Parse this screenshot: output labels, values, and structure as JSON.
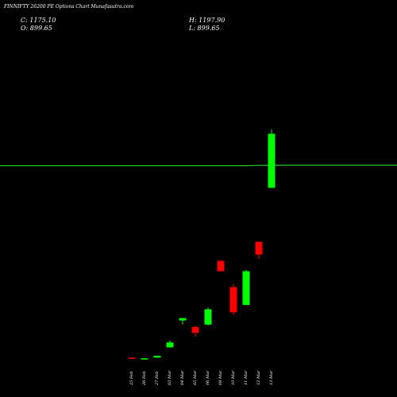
{
  "header": {
    "title": "FINNIFTY 26200 PE Options Chart Munafasutra.com",
    "close": "C: 1175.10",
    "high": "H: 1197.90",
    "open": "O: 899.65",
    "low": "L: 899.65"
  },
  "colors": {
    "background": "#000000",
    "up": "#00ff00",
    "down": "#ff0000",
    "ma_line": "#22cc22",
    "text": "#ffffff"
  },
  "chart_data": {
    "type": "candlestick",
    "title": "FINNIFTY 26200 PE Options Chart Munafasutra.com",
    "xlabel": "",
    "ylabel": "",
    "grid": false,
    "ylim": [
      0,
      1250
    ],
    "categories": [
      "25 Feb",
      "26 Feb",
      "27 Feb",
      "03 Mar",
      "04 Mar",
      "05 Mar",
      "06 Mar",
      "09 Mar",
      "10 Mar",
      "11 Mar",
      "12 Mar",
      "13 Mar"
    ],
    "candles": [
      {
        "date": "25 Feb",
        "open": 35,
        "high": 36,
        "low": 31,
        "close": 32,
        "direction": "down"
      },
      {
        "date": "26 Feb",
        "open": 29,
        "high": 33,
        "low": 28,
        "close": 31,
        "direction": "up"
      },
      {
        "date": "27 Feb",
        "open": 35,
        "high": 45,
        "low": 34,
        "close": 44,
        "direction": "up"
      },
      {
        "date": "03 Mar",
        "open": 87,
        "high": 122,
        "low": 86,
        "close": 112,
        "direction": "up"
      },
      {
        "date": "04 Mar",
        "open": 224,
        "high": 236,
        "low": 203,
        "close": 236,
        "direction": "up"
      },
      {
        "date": "05 Mar",
        "open": 191,
        "high": 198,
        "low": 142,
        "close": 161,
        "direction": "down"
      },
      {
        "date": "06 Mar",
        "open": 203,
        "high": 290,
        "low": 198,
        "close": 281,
        "direction": "up"
      },
      {
        "date": "09 Mar",
        "open": 528,
        "high": 528,
        "low": 475,
        "close": 475,
        "direction": "down"
      },
      {
        "date": "10 Mar",
        "open": 394,
        "high": 410,
        "low": 252,
        "close": 266,
        "direction": "down"
      },
      {
        "date": "11 Mar",
        "open": 303,
        "high": 482,
        "low": 303,
        "close": 475,
        "direction": "up"
      },
      {
        "date": "12 Mar",
        "open": 625,
        "high": 625,
        "low": 537,
        "close": 560,
        "direction": "down"
      },
      {
        "date": "13 Mar",
        "open": 900,
        "high": 1198,
        "low": 900,
        "close": 1175,
        "direction": "up"
      }
    ],
    "moving_average": {
      "values": [
        1013,
        1013,
        1013,
        1013,
        1013,
        1013,
        1013,
        1013,
        1013,
        1013,
        1014,
        1015
      ]
    }
  }
}
